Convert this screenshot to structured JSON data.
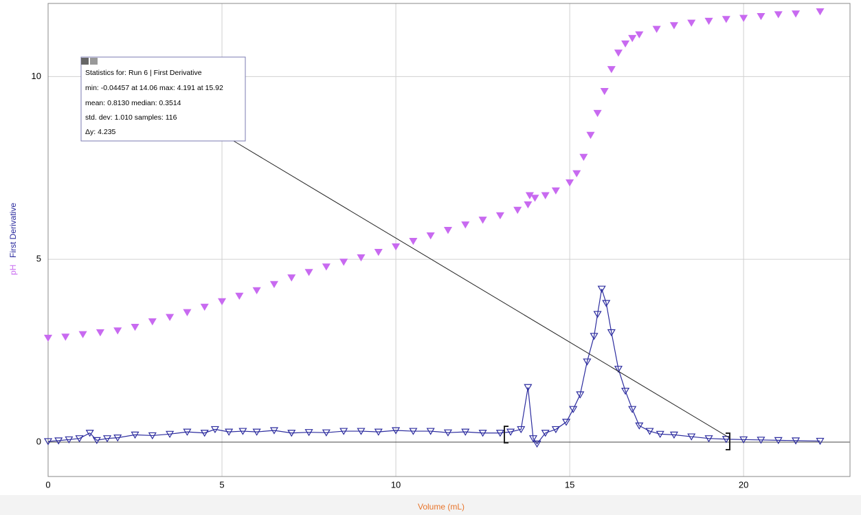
{
  "chart_data": {
    "type": "line",
    "xlabel": "Volume (mL)",
    "xlim": [
      0,
      23.06
    ],
    "ylim": [
      -0.94,
      12.0
    ],
    "xticks": [
      0,
      5,
      10,
      15,
      20
    ],
    "yticks": [
      0,
      5,
      10
    ],
    "grid": true,
    "series": [
      {
        "name": "pH",
        "color": "#c86af0",
        "marker": "filled",
        "line": false,
        "x": [
          0,
          0.5,
          1,
          1.5,
          2,
          2.5,
          3,
          3.5,
          4,
          4.5,
          5,
          5.5,
          6,
          6.5,
          7,
          7.5,
          8,
          8.5,
          9,
          9.5,
          10,
          10.5,
          11,
          11.5,
          12,
          12.5,
          13,
          13.5,
          13.8,
          13.85,
          14,
          14.3,
          14.6,
          15,
          15.2,
          15.4,
          15.6,
          15.8,
          16,
          16.2,
          16.4,
          16.6,
          16.8,
          17,
          17.5,
          18,
          18.5,
          19,
          19.5,
          20,
          20.5,
          21,
          21.5,
          22.2
        ],
        "values": [
          2.85,
          2.88,
          2.95,
          3.0,
          3.05,
          3.15,
          3.3,
          3.42,
          3.55,
          3.7,
          3.85,
          4.0,
          4.15,
          4.32,
          4.5,
          4.65,
          4.8,
          4.93,
          5.05,
          5.2,
          5.35,
          5.5,
          5.65,
          5.8,
          5.95,
          6.08,
          6.2,
          6.35,
          6.5,
          6.75,
          6.68,
          6.75,
          6.88,
          7.1,
          7.35,
          7.8,
          8.4,
          9.0,
          9.6,
          10.2,
          10.65,
          10.9,
          11.05,
          11.15,
          11.3,
          11.4,
          11.47,
          11.52,
          11.57,
          11.6,
          11.65,
          11.7,
          11.72,
          11.78
        ]
      },
      {
        "name": "First Derivative",
        "color": "#2b2b9e",
        "marker": "open",
        "line": true,
        "x": [
          0,
          0.3,
          0.6,
          0.9,
          1.2,
          1.4,
          1.7,
          2,
          2.5,
          3,
          3.5,
          4,
          4.5,
          4.8,
          5.2,
          5.6,
          6,
          6.5,
          7,
          7.5,
          8,
          8.5,
          9,
          9.5,
          10,
          10.5,
          11,
          11.5,
          12,
          12.5,
          13,
          13.3,
          13.6,
          13.8,
          13.95,
          14.06,
          14.3,
          14.6,
          14.9,
          15.1,
          15.3,
          15.5,
          15.7,
          15.8,
          15.92,
          16.05,
          16.2,
          16.4,
          16.6,
          16.8,
          17,
          17.3,
          17.6,
          18,
          18.5,
          19,
          19.5,
          20,
          20.5,
          21,
          21.5,
          22.2
        ],
        "values": [
          0.02,
          0.04,
          0.07,
          0.1,
          0.25,
          0.05,
          0.1,
          0.12,
          0.2,
          0.18,
          0.22,
          0.28,
          0.25,
          0.35,
          0.28,
          0.3,
          0.28,
          0.32,
          0.25,
          0.27,
          0.26,
          0.3,
          0.3,
          0.28,
          0.32,
          0.3,
          0.3,
          0.26,
          0.28,
          0.25,
          0.25,
          0.28,
          0.35,
          1.5,
          0.1,
          -0.04457,
          0.25,
          0.35,
          0.55,
          0.9,
          1.3,
          2.2,
          2.9,
          3.5,
          4.191,
          3.8,
          3.0,
          2.0,
          1.4,
          0.9,
          0.45,
          0.3,
          0.22,
          0.2,
          0.15,
          0.1,
          0.08,
          0.07,
          0.06,
          0.05,
          0.04,
          0.03
        ]
      }
    ],
    "annotation": {
      "title": "Statistics for: Run 6 | First Derivative",
      "lines": [
        "min: -0.04457 at 14.06 max: 4.191 at 15.92",
        "mean: 0.8130 median: 0.3514",
        "std. dev: 1.010 samples: 116",
        "Δy: 4.235"
      ]
    }
  }
}
